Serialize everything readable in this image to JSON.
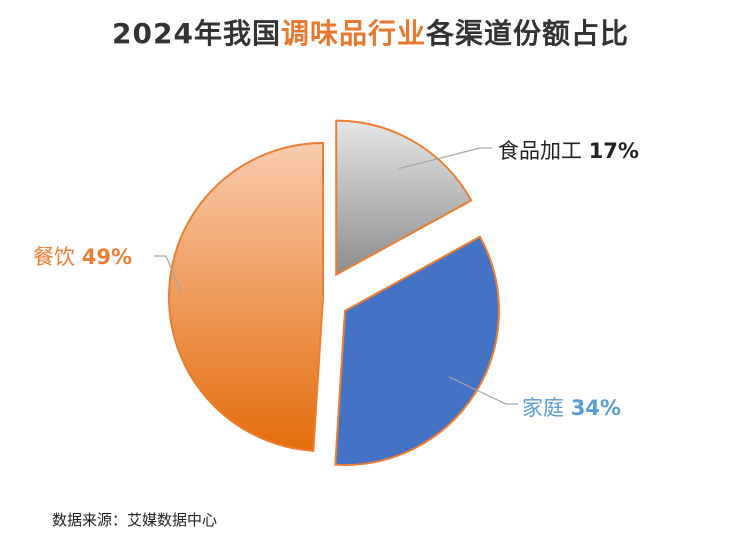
{
  "title": {
    "part1": "2024年我国",
    "highlight": "调味品行业",
    "part2": "各渠道份额占比"
  },
  "chart_data": {
    "type": "pie",
    "title": "2024年我国调味品行业各渠道份额占比",
    "slices": [
      {
        "label": "食品加工",
        "value": 17,
        "value_label": "17%",
        "label_color": "#222222",
        "top_color": "#E6E6E6",
        "bottom_color": "#8C8C8C",
        "exploded": true
      },
      {
        "label": "家庭",
        "value": 34,
        "value_label": "34%",
        "label_color": "#5B9BD5",
        "top_color": "#4472C4",
        "bottom_color": "#4472C4",
        "exploded": true
      },
      {
        "label": "餐饮",
        "value": 49,
        "value_label": "49%",
        "label_color": "#ED7D31",
        "top_color": "#F8CBAD",
        "bottom_color": "#E46C0A",
        "exploded": false
      }
    ],
    "border_color": "#ED7D31",
    "legend": "none"
  },
  "source": "数据来源：艾媒数据中心"
}
